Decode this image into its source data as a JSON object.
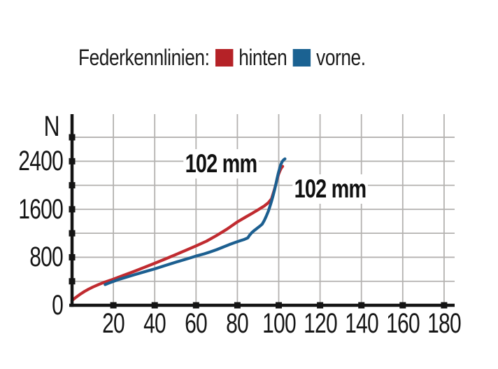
{
  "legend": {
    "title": "Federkennlinien:",
    "items": [
      {
        "label": "hinten",
        "color": "#b52227"
      },
      {
        "label": "vorne.",
        "color": "#1b6292"
      }
    ]
  },
  "chart_data": {
    "type": "line",
    "title": "Federkennlinien:",
    "xlabel": "",
    "ylabel": "N",
    "xlim": [
      0,
      186
    ],
    "ylim": [
      0,
      3180
    ],
    "grid": true,
    "legend_position": "top",
    "x_ticks": [
      20,
      40,
      60,
      80,
      100,
      120,
      140,
      160,
      180
    ],
    "y_gridlines": [
      400,
      800,
      1200,
      1600,
      2000,
      2400,
      2800
    ],
    "y_tick_labels": [
      2400,
      1600,
      800,
      0
    ],
    "colors": {
      "grid": "#b4b2b0",
      "axis": "#141414"
    },
    "annotations": [
      {
        "text": "102 mm",
        "series": "hinten",
        "x": 72,
        "y": 2360
      },
      {
        "text": "102 mm",
        "series": "vorne",
        "x": 125,
        "y": 1940
      }
    ],
    "series": [
      {
        "name": "hinten",
        "color": "#c02b30",
        "points": [
          [
            0,
            80
          ],
          [
            2,
            135
          ],
          [
            4,
            185
          ],
          [
            6,
            230
          ],
          [
            8,
            268
          ],
          [
            10,
            303
          ],
          [
            13,
            348
          ],
          [
            16,
            388
          ],
          [
            20,
            435
          ],
          [
            25,
            500
          ],
          [
            30,
            565
          ],
          [
            35,
            632
          ],
          [
            40,
            700
          ],
          [
            45,
            770
          ],
          [
            50,
            843
          ],
          [
            55,
            915
          ],
          [
            60,
            990
          ],
          [
            65,
            1068
          ],
          [
            70,
            1165
          ],
          [
            75,
            1270
          ],
          [
            80,
            1390
          ],
          [
            84,
            1470
          ],
          [
            87,
            1530
          ],
          [
            90,
            1590
          ],
          [
            93,
            1655
          ],
          [
            95,
            1710
          ],
          [
            96.5,
            1775
          ],
          [
            97.3,
            1860
          ],
          [
            98,
            1940
          ],
          [
            98.7,
            2030
          ],
          [
            99.4,
            2120
          ],
          [
            100,
            2190
          ],
          [
            100.7,
            2250
          ],
          [
            101.3,
            2290
          ],
          [
            101.9,
            2315
          ]
        ]
      },
      {
        "name": "vorne",
        "color": "#1c5f90",
        "points": [
          [
            16,
            345
          ],
          [
            18,
            372
          ],
          [
            20,
            398
          ],
          [
            23,
            435
          ],
          [
            26,
            465
          ],
          [
            30,
            508
          ],
          [
            35,
            558
          ],
          [
            40,
            607
          ],
          [
            45,
            662
          ],
          [
            50,
            716
          ],
          [
            55,
            768
          ],
          [
            60,
            820
          ],
          [
            64,
            858
          ],
          [
            67,
            892
          ],
          [
            70,
            928
          ],
          [
            73,
            968
          ],
          [
            76,
            1010
          ],
          [
            79,
            1048
          ],
          [
            81,
            1072
          ],
          [
            83,
            1093
          ],
          [
            85,
            1122
          ],
          [
            86,
            1172
          ],
          [
            87,
            1212
          ],
          [
            88,
            1242
          ],
          [
            89,
            1268
          ],
          [
            90,
            1295
          ],
          [
            91,
            1322
          ],
          [
            92,
            1352
          ],
          [
            93,
            1412
          ],
          [
            94,
            1488
          ],
          [
            95,
            1570
          ],
          [
            95.8,
            1655
          ],
          [
            96.6,
            1745
          ],
          [
            97.3,
            1830
          ],
          [
            98,
            1925
          ],
          [
            98.6,
            2015
          ],
          [
            99.2,
            2110
          ],
          [
            99.8,
            2200
          ],
          [
            100.4,
            2280
          ],
          [
            101,
            2345
          ],
          [
            101.7,
            2395
          ],
          [
            102.4,
            2425
          ],
          [
            103,
            2440
          ]
        ]
      }
    ]
  }
}
